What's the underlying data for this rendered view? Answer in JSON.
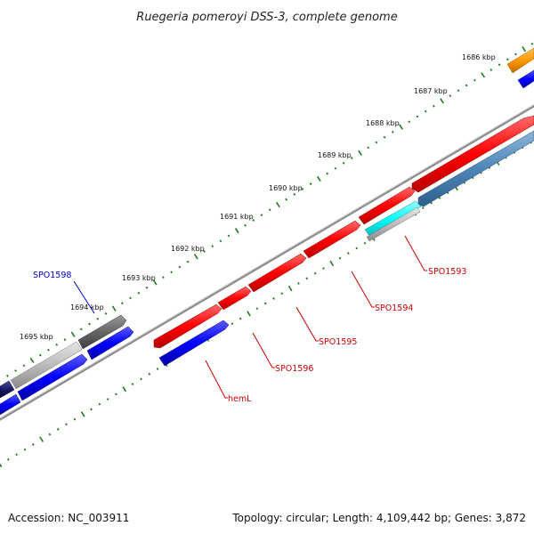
{
  "title": "Ruegeria pomeroyi DSS-3, complete genome",
  "footer": {
    "accession": "Accession: NC_003911",
    "summary": "Topology: circular; Length: 4,109,442 bp; Genes: 3,872"
  },
  "scale_ticks": [
    {
      "label": "1686 kbp"
    },
    {
      "label": "1687 kbp"
    },
    {
      "label": "1688 kbp"
    },
    {
      "label": "1689 kbp"
    },
    {
      "label": "1690 kbp"
    },
    {
      "label": "1691 kbp"
    },
    {
      "label": "1692 kbp"
    },
    {
      "label": "1693 kbp"
    },
    {
      "label": "1694 kbp"
    },
    {
      "label": "1695 kbp"
    }
  ],
  "gene_labels": [
    {
      "name": "SPO1598",
      "color": "#0000cc"
    },
    {
      "name": "SPO1593",
      "color": "#cc0000"
    },
    {
      "name": "SPO1594",
      "color": "#cc0000"
    },
    {
      "name": "SPO1595",
      "color": "#cc0000"
    },
    {
      "name": "SPO1596",
      "color": "#cc0000"
    },
    {
      "name": "hemL",
      "color": "#cc0000"
    }
  ],
  "colors": {
    "red_feature": "#ff0000",
    "blue_feature": "#0000ff",
    "steelblue_feature": "#4f86b8",
    "cyan_feature": "#00ffff",
    "orange_feature": "#ff9900",
    "gray_feature": "#bbbbbb",
    "darkgray_feature": "#666666",
    "navy_feature": "#1a1a66",
    "backbone": "#8c8c8c",
    "tick_dots": "#1f7a1f"
  }
}
